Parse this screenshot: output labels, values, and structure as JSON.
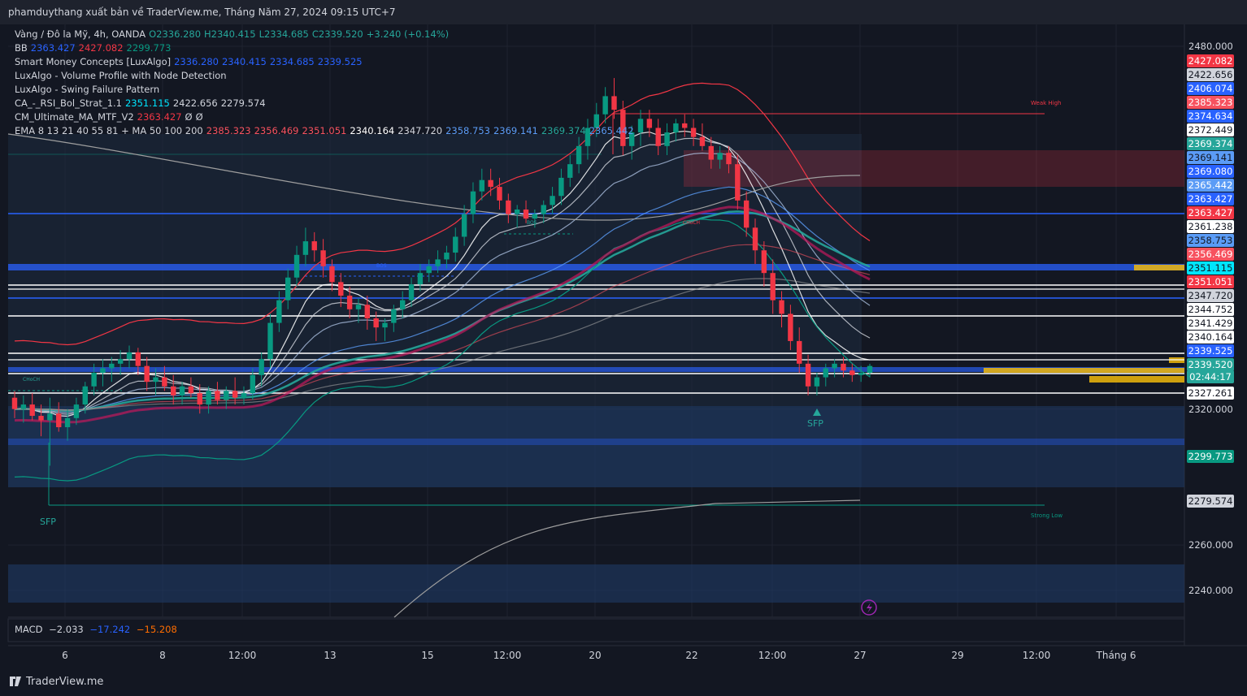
{
  "header": {
    "title": "phamduythang xuất bản về TraderView.me, Tháng Năm 27, 2024 09:15 UTC+7"
  },
  "legend": [
    {
      "label": "Vàng / Đô la Mỹ, 4h, OANDA",
      "values": [
        {
          "t": "O2336.280",
          "c": "#26a69a"
        },
        {
          "t": "H2340.415",
          "c": "#26a69a"
        },
        {
          "t": "L2334.685",
          "c": "#26a69a"
        },
        {
          "t": "C2339.520",
          "c": "#26a69a"
        },
        {
          "t": "+3.240 (+0.14%)",
          "c": "#26a69a"
        }
      ]
    },
    {
      "label": "BB",
      "values": [
        {
          "t": "2363.427",
          "c": "#2962ff"
        },
        {
          "t": "2427.082",
          "c": "#f23645"
        },
        {
          "t": "2299.773",
          "c": "#089981"
        }
      ]
    },
    {
      "label": "Smart Money Concepts [LuxAlgo]",
      "values": [
        {
          "t": "2336.280",
          "c": "#2962ff"
        },
        {
          "t": "2340.415",
          "c": "#2962ff"
        },
        {
          "t": "2334.685",
          "c": "#2962ff"
        },
        {
          "t": "2339.525",
          "c": "#2962ff"
        }
      ]
    },
    {
      "label": "LuxAlgo - Volume Profile with Node Detection",
      "values": []
    },
    {
      "label": "LuxAlgo - Swing Failure Pattern",
      "values": []
    },
    {
      "label": "CA_-_RSI_Bol_Strat_1.1",
      "values": [
        {
          "t": "2351.115",
          "c": "#00e5ff"
        },
        {
          "t": "2422.656",
          "c": "#d1d4dc"
        },
        {
          "t": "2279.574",
          "c": "#d1d4dc"
        }
      ]
    },
    {
      "label": "CM_Ultimate_MA_MTF_V2",
      "values": [
        {
          "t": "2363.427",
          "c": "#f23645"
        },
        {
          "t": "Ø",
          "c": "#d1d4dc"
        },
        {
          "t": "Ø",
          "c": "#d1d4dc"
        }
      ]
    },
    {
      "label": "EMA 8 13 21 40 55 81 + MA 50 100 200",
      "values": [
        {
          "t": "2385.323",
          "c": "#f7525f"
        },
        {
          "t": "2356.469",
          "c": "#f7525f"
        },
        {
          "t": "2351.051",
          "c": "#f7525f"
        },
        {
          "t": "2340.164",
          "c": "#ffffff"
        },
        {
          "t": "2347.720",
          "c": "#d1d4dc"
        },
        {
          "t": "2358.753",
          "c": "#5b9cf6"
        },
        {
          "t": "2369.141",
          "c": "#5b9cf6"
        },
        {
          "t": "2369.374",
          "c": "#26a69a"
        },
        {
          "t": "2365.442",
          "c": "#5b9cf6"
        }
      ]
    }
  ],
  "macd": {
    "label": "MACD",
    "v1": "−2.033",
    "v2": "−17.242",
    "v3": "−15.208"
  },
  "price_labels": [
    {
      "t": "2427.082",
      "bg": "#f23645",
      "fg": "#ffffff"
    },
    {
      "t": "2422.656",
      "bg": "#d1d4dc",
      "fg": "#131722"
    },
    {
      "t": "2406.074",
      "bg": "#2962ff",
      "fg": "#ffffff"
    },
    {
      "t": "2385.323",
      "bg": "#f7525f",
      "fg": "#ffffff"
    },
    {
      "t": "2374.634",
      "bg": "#2962ff",
      "fg": "#ffffff"
    },
    {
      "t": "2372.449",
      "bg": "#ffffff",
      "fg": "#131722"
    },
    {
      "t": "2369.374",
      "bg": "#26a69a",
      "fg": "#ffffff"
    },
    {
      "t": "2369.141",
      "bg": "#5b9cf6",
      "fg": "#131722"
    },
    {
      "t": "2369.080",
      "bg": "#2962ff",
      "fg": "#ffffff"
    },
    {
      "t": "2365.442",
      "bg": "#5b9cf6",
      "fg": "#ffffff"
    },
    {
      "t": "2363.427",
      "bg": "#2962ff",
      "fg": "#ffffff"
    },
    {
      "t": "2363.427",
      "bg": "#f23645",
      "fg": "#ffffff"
    },
    {
      "t": "2361.238",
      "bg": "#ffffff",
      "fg": "#131722"
    },
    {
      "t": "2358.753",
      "bg": "#5b9cf6",
      "fg": "#131722"
    },
    {
      "t": "2356.469",
      "bg": "#f7525f",
      "fg": "#ffffff"
    },
    {
      "t": "2351.115",
      "bg": "#00e5ff",
      "fg": "#131722"
    },
    {
      "t": "2351.051",
      "bg": "#f23645",
      "fg": "#ffffff"
    },
    {
      "t": "2347.720",
      "bg": "#d1d4dc",
      "fg": "#131722"
    },
    {
      "t": "2344.752",
      "bg": "#ffffff",
      "fg": "#131722"
    },
    {
      "t": "2341.429",
      "bg": "#ffffff",
      "fg": "#131722"
    },
    {
      "t": "2340.164",
      "bg": "#ffffff",
      "fg": "#131722"
    },
    {
      "t": "2339.525",
      "bg": "#2962ff",
      "fg": "#ffffff"
    },
    {
      "t": "2339.520",
      "bg": "#26a69a",
      "fg": "#ffffff"
    },
    {
      "t": "02:44:17",
      "bg": "#26a69a",
      "fg": "#ffffff"
    },
    {
      "t": "2327.261",
      "bg": "#ffffff",
      "fg": "#131722"
    },
    {
      "t": "2299.773",
      "bg": "#089981",
      "fg": "#ffffff"
    },
    {
      "t": "2279.574",
      "bg": "#d1d4dc",
      "fg": "#131722"
    }
  ],
  "annotations": {
    "sfp": "SFP",
    "weak_high": "Weak High",
    "strong_low": "Strong Low",
    "bos": "BOS",
    "choch": "CHoCH"
  },
  "footer": {
    "brand": "TraderView.me"
  },
  "chart_data": {
    "type": "candlestick",
    "ylim": [
      2230,
      2490
    ],
    "yticks": [
      2480,
      2320,
      2260,
      2240
    ],
    "xticks": [
      "6",
      "8",
      "12:00",
      "13",
      "15",
      "12:00",
      "20",
      "22",
      "12:00",
      "27",
      "29",
      "12:00",
      "Tháng 6"
    ],
    "candles": [
      [
        2325,
        2328,
        2316,
        2320
      ],
      [
        2320,
        2326,
        2314,
        2322
      ],
      [
        2322,
        2327,
        2315,
        2317
      ],
      [
        2317,
        2322,
        2308,
        2315
      ],
      [
        2315,
        2325,
        2295,
        2318
      ],
      [
        2318,
        2323,
        2310,
        2312
      ],
      [
        2312,
        2320,
        2306,
        2316
      ],
      [
        2316,
        2325,
        2313,
        2322
      ],
      [
        2322,
        2332,
        2318,
        2330
      ],
      [
        2330,
        2340,
        2326,
        2336
      ],
      [
        2336,
        2342,
        2330,
        2338
      ],
      [
        2338,
        2343,
        2332,
        2340
      ],
      [
        2340,
        2346,
        2335,
        2342
      ],
      [
        2342,
        2348,
        2338,
        2345
      ],
      [
        2345,
        2347,
        2335,
        2339
      ],
      [
        2339,
        2343,
        2328,
        2332
      ],
      [
        2332,
        2338,
        2326,
        2334
      ],
      [
        2334,
        2339,
        2328,
        2330
      ],
      [
        2330,
        2335,
        2322,
        2326
      ],
      [
        2326,
        2332,
        2322,
        2330
      ],
      [
        2330,
        2334,
        2325,
        2327
      ],
      [
        2327,
        2331,
        2318,
        2322
      ],
      [
        2322,
        2330,
        2318,
        2328
      ],
      [
        2328,
        2332,
        2322,
        2324
      ],
      [
        2324,
        2330,
        2320,
        2328
      ],
      [
        2328,
        2334,
        2322,
        2325
      ],
      [
        2325,
        2330,
        2322,
        2327
      ],
      [
        2327,
        2338,
        2324,
        2335
      ],
      [
        2335,
        2345,
        2330,
        2342
      ],
      [
        2342,
        2362,
        2338,
        2358
      ],
      [
        2358,
        2372,
        2354,
        2368
      ],
      [
        2368,
        2382,
        2364,
        2378
      ],
      [
        2378,
        2392,
        2374,
        2388
      ],
      [
        2388,
        2400,
        2383,
        2394
      ],
      [
        2394,
        2398,
        2385,
        2390
      ],
      [
        2390,
        2395,
        2378,
        2383
      ],
      [
        2383,
        2386,
        2372,
        2376
      ],
      [
        2376,
        2380,
        2365,
        2370
      ],
      [
        2370,
        2374,
        2360,
        2364
      ],
      [
        2364,
        2369,
        2358,
        2366
      ],
      [
        2366,
        2370,
        2355,
        2360
      ],
      [
        2360,
        2363,
        2350,
        2356
      ],
      [
        2356,
        2360,
        2350,
        2358
      ],
      [
        2358,
        2366,
        2354,
        2364
      ],
      [
        2364,
        2372,
        2360,
        2368
      ],
      [
        2368,
        2378,
        2365,
        2375
      ],
      [
        2375,
        2384,
        2372,
        2380
      ],
      [
        2380,
        2386,
        2376,
        2383
      ],
      [
        2383,
        2390,
        2380,
        2386
      ],
      [
        2386,
        2392,
        2382,
        2389
      ],
      [
        2389,
        2400,
        2385,
        2396
      ],
      [
        2396,
        2410,
        2392,
        2406
      ],
      [
        2406,
        2420,
        2402,
        2416
      ],
      [
        2416,
        2426,
        2412,
        2421
      ],
      [
        2421,
        2426,
        2414,
        2418
      ],
      [
        2418,
        2422,
        2408,
        2412
      ],
      [
        2412,
        2415,
        2402,
        2406
      ],
      [
        2406,
        2410,
        2400,
        2408
      ],
      [
        2408,
        2412,
        2402,
        2404
      ],
      [
        2404,
        2408,
        2400,
        2406
      ],
      [
        2406,
        2412,
        2402,
        2410
      ],
      [
        2410,
        2418,
        2406,
        2414
      ],
      [
        2414,
        2426,
        2410,
        2422
      ],
      [
        2422,
        2432,
        2418,
        2428
      ],
      [
        2428,
        2440,
        2424,
        2436
      ],
      [
        2436,
        2448,
        2430,
        2444
      ],
      [
        2444,
        2455,
        2440,
        2450
      ],
      [
        2450,
        2462,
        2446,
        2458
      ],
      [
        2458,
        2466,
        2448,
        2452
      ],
      [
        2452,
        2456,
        2432,
        2436
      ],
      [
        2436,
        2445,
        2430,
        2442
      ],
      [
        2442,
        2452,
        2436,
        2448
      ],
      [
        2448,
        2452,
        2440,
        2444
      ],
      [
        2444,
        2448,
        2432,
        2436
      ],
      [
        2436,
        2446,
        2432,
        2442
      ],
      [
        2442,
        2448,
        2438,
        2446
      ],
      [
        2446,
        2450,
        2440,
        2444
      ],
      [
        2444,
        2448,
        2436,
        2440
      ],
      [
        2440,
        2446,
        2434,
        2436
      ],
      [
        2436,
        2440,
        2426,
        2430
      ],
      [
        2430,
        2436,
        2426,
        2433
      ],
      [
        2433,
        2436,
        2424,
        2428
      ],
      [
        2428,
        2432,
        2408,
        2412
      ],
      [
        2412,
        2416,
        2396,
        2400
      ],
      [
        2400,
        2404,
        2384,
        2390
      ],
      [
        2390,
        2394,
        2374,
        2380
      ],
      [
        2380,
        2386,
        2362,
        2368
      ],
      [
        2368,
        2372,
        2356,
        2362
      ],
      [
        2362,
        2366,
        2346,
        2350
      ],
      [
        2350,
        2356,
        2336,
        2340
      ],
      [
        2340,
        2344,
        2326,
        2330
      ],
      [
        2330,
        2336,
        2326,
        2334
      ],
      [
        2334,
        2340,
        2330,
        2338
      ],
      [
        2338,
        2342,
        2334,
        2340
      ],
      [
        2340,
        2343,
        2334,
        2337
      ],
      [
        2337,
        2340,
        2332,
        2335
      ],
      [
        2335,
        2339,
        2332,
        2336
      ],
      [
        2336,
        2340,
        2334,
        2339
      ]
    ]
  }
}
